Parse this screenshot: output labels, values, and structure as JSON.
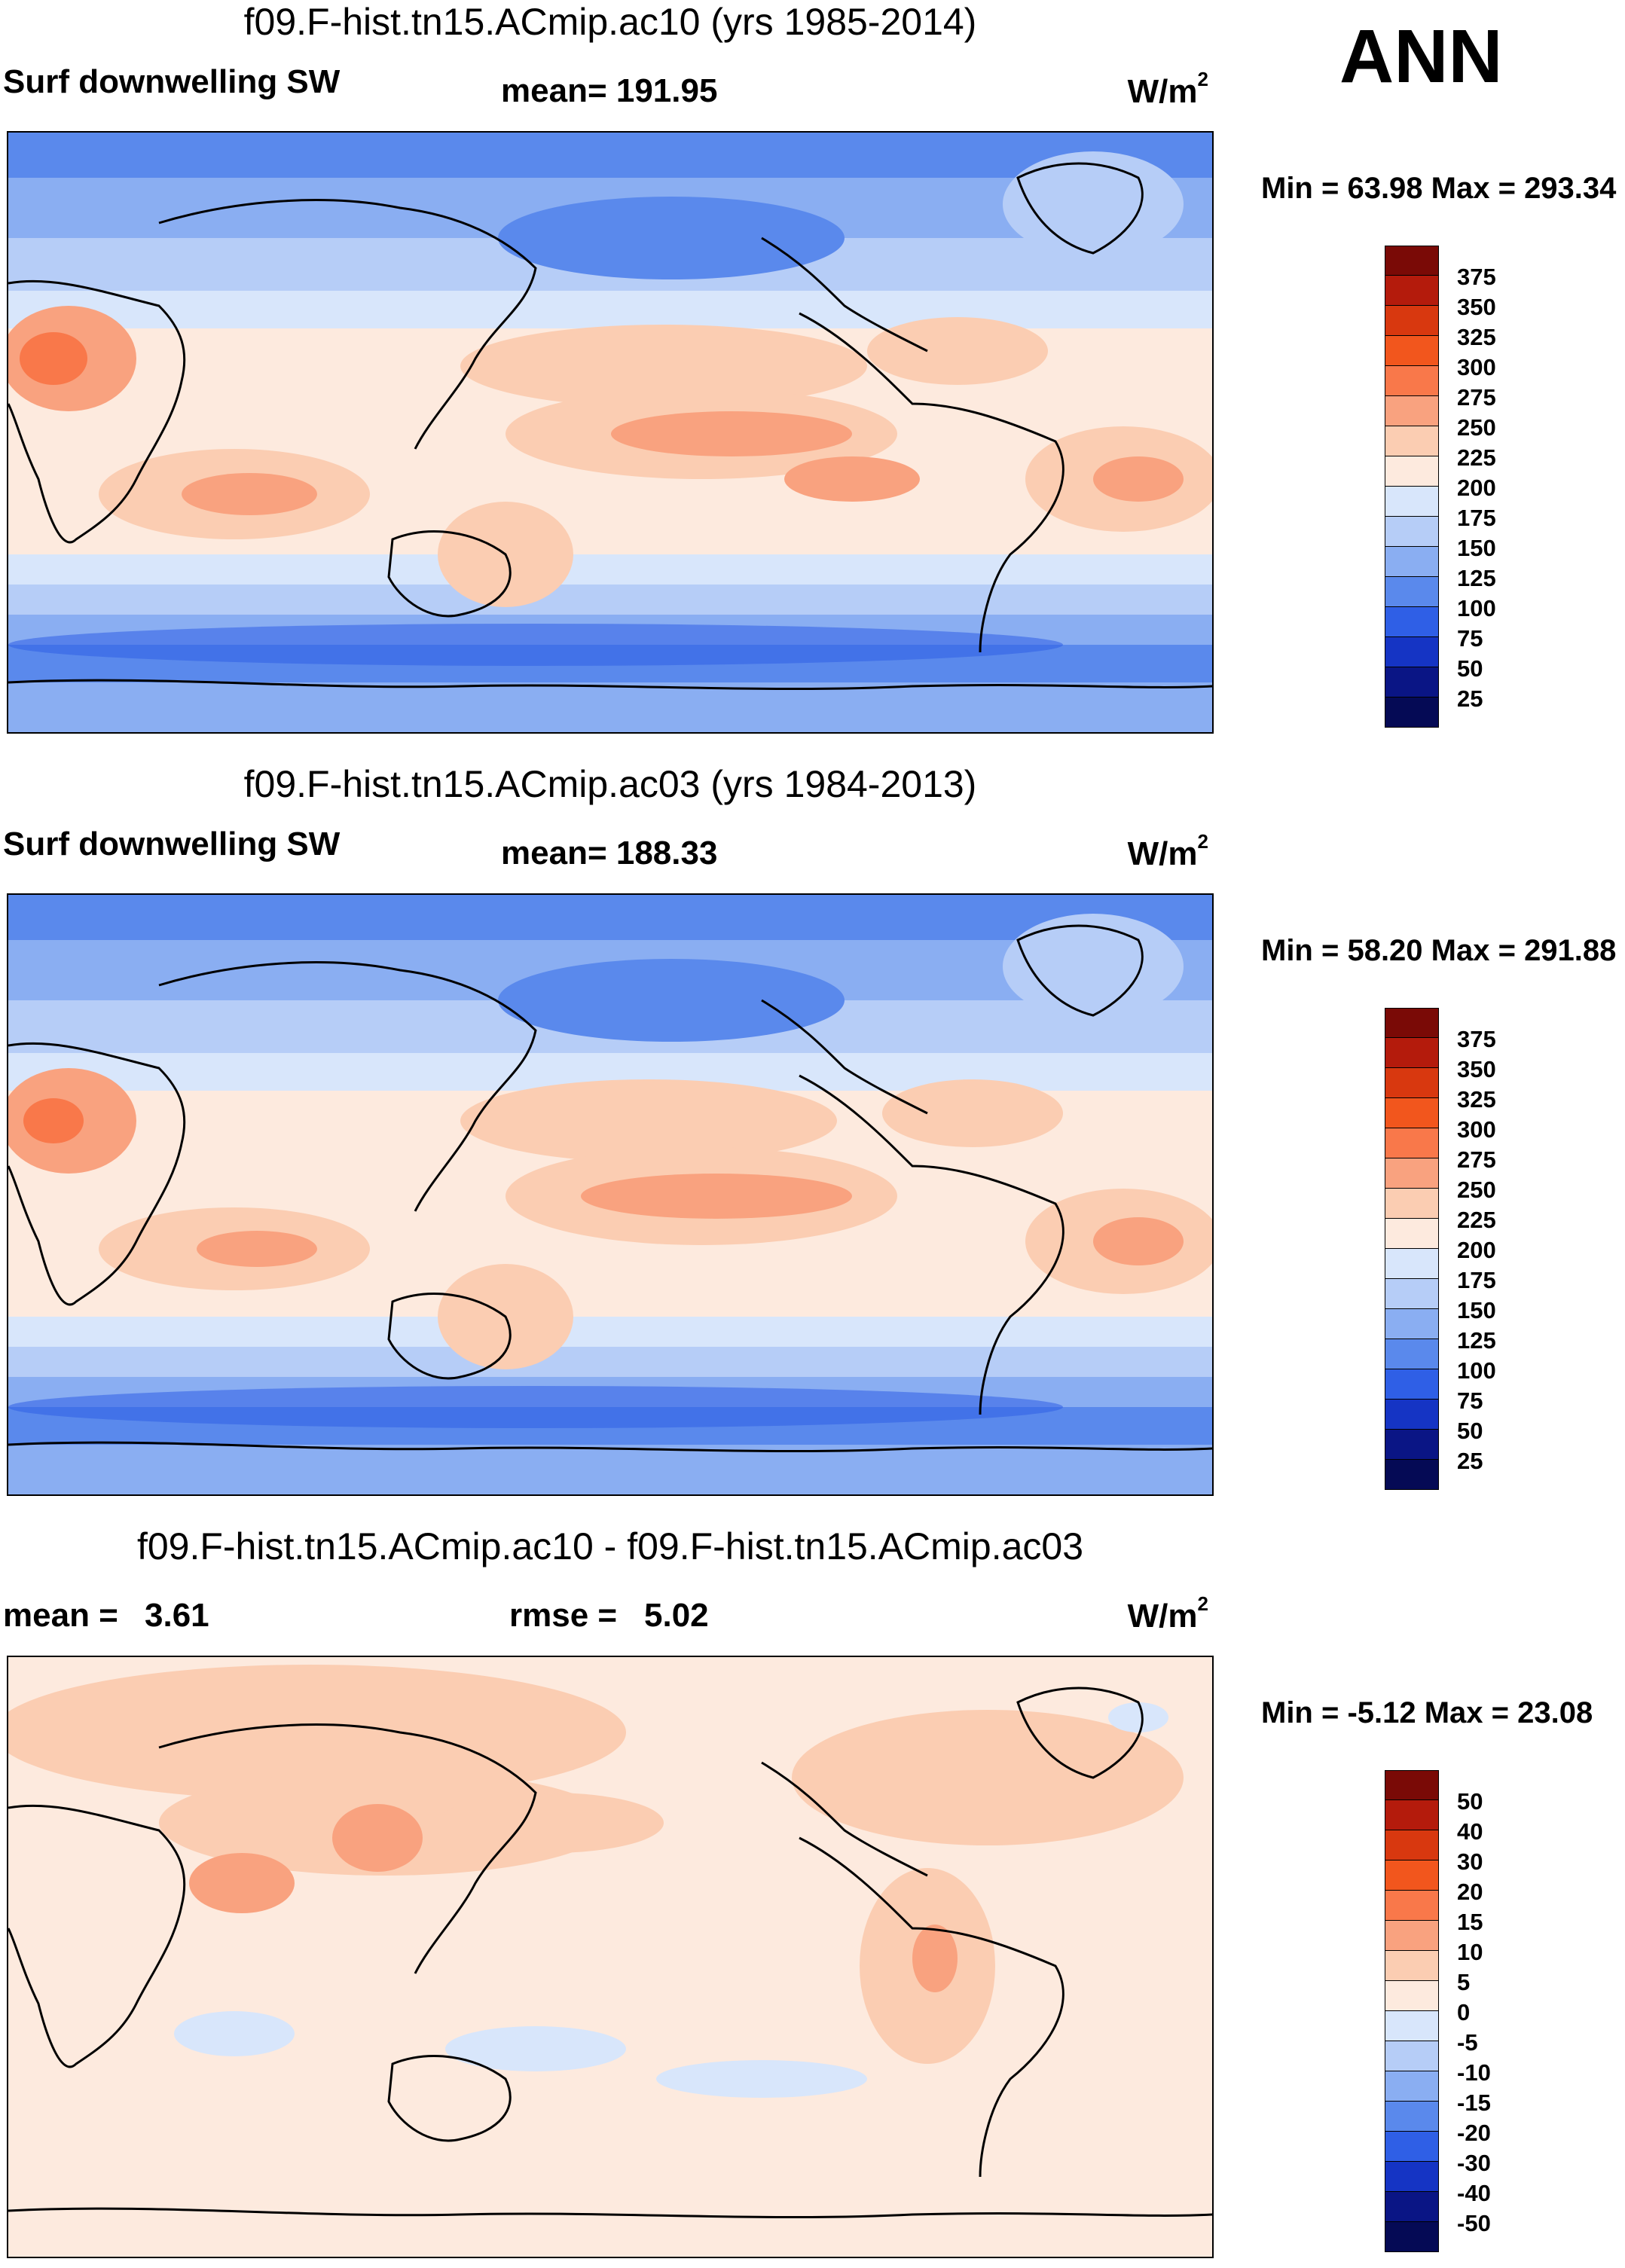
{
  "season": "ANN",
  "chart_data": [
    {
      "type": "heatmap",
      "title": "f09.F-hist.tn15.ACmip.ac10 (yrs 1985-2014)",
      "variable": "Surf downwelling SW",
      "stat_line": "mean= 191.95",
      "units": "W/m",
      "units_sup": "2",
      "minmax": "Min =  63.98 Max = 293.34",
      "mean": 191.95,
      "min": 63.98,
      "max": 293.34,
      "levels": [
        "375",
        "350",
        "325",
        "300",
        "275",
        "250",
        "225",
        "200",
        "175",
        "150",
        "125",
        "100",
        "75",
        "50",
        "25"
      ],
      "colors": [
        "#7a0a06",
        "#b41b0c",
        "#d8380f",
        "#f2561d",
        "#f9784a",
        "#f9a27f",
        "#fbcdb2",
        "#fdeade",
        "#d8e6fb",
        "#b6cdf7",
        "#8aaef2",
        "#5a89ec",
        "#2f5fe6",
        "#1534c4",
        "#0a1585",
        "#050a55"
      ]
    },
    {
      "type": "heatmap",
      "title": "f09.F-hist.tn15.ACmip.ac03 (yrs 1984-2013)",
      "variable": "Surf downwelling SW",
      "stat_line": "mean= 188.33",
      "units": "W/m",
      "units_sup": "2",
      "minmax": "Min =  58.20 Max = 291.88",
      "mean": 188.33,
      "min": 58.2,
      "max": 291.88,
      "levels": [
        "375",
        "350",
        "325",
        "300",
        "275",
        "250",
        "225",
        "200",
        "175",
        "150",
        "125",
        "100",
        "75",
        "50",
        "25"
      ],
      "colors": [
        "#7a0a06",
        "#b41b0c",
        "#d8380f",
        "#f2561d",
        "#f9784a",
        "#f9a27f",
        "#fbcdb2",
        "#fdeade",
        "#d8e6fb",
        "#b6cdf7",
        "#8aaef2",
        "#5a89ec",
        "#2f5fe6",
        "#1534c4",
        "#0a1585",
        "#050a55"
      ]
    },
    {
      "type": "heatmap",
      "title": "f09.F-hist.tn15.ACmip.ac10 - f09.F-hist.tn15.ACmip.ac03",
      "variable": "",
      "stat_mean_label": "mean =",
      "stat_mean_value": "3.61",
      "stat_rmse_label": "rmse =",
      "stat_rmse_value": "5.02",
      "units": "W/m",
      "units_sup": "2",
      "minmax": "Min =  -5.12 Max =  23.08",
      "mean": 3.61,
      "rmse": 5.02,
      "min": -5.12,
      "max": 23.08,
      "levels": [
        "50",
        "40",
        "30",
        "20",
        "15",
        "10",
        "5",
        "0",
        "-5",
        "-10",
        "-15",
        "-20",
        "-30",
        "-40",
        "-50"
      ],
      "colors": [
        "#7a0a06",
        "#b41b0c",
        "#d8380f",
        "#f2561d",
        "#f9784a",
        "#f9a27f",
        "#fbcdb2",
        "#fdeade",
        "#d8e6fb",
        "#b6cdf7",
        "#8aaef2",
        "#5a89ec",
        "#2f5fe6",
        "#1534c4",
        "#0a1585",
        "#050a55"
      ]
    }
  ]
}
